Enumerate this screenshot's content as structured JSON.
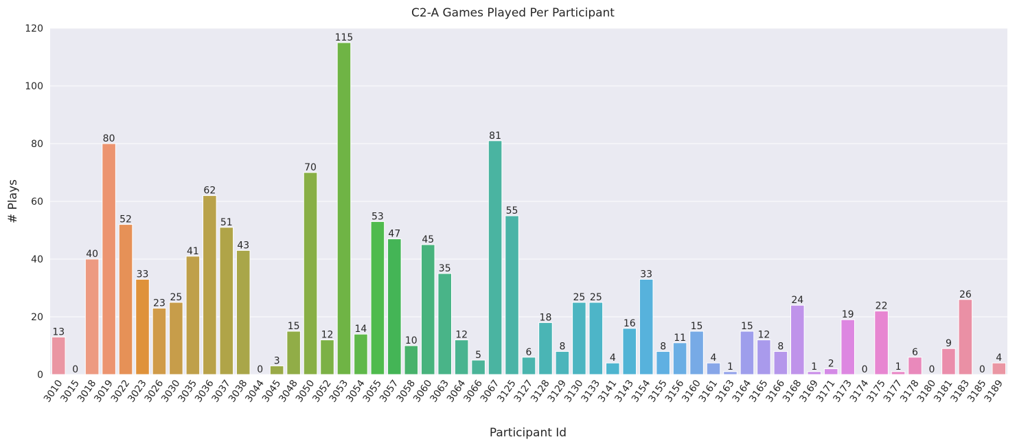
{
  "chart_data": {
    "type": "bar",
    "title": "C2-A Games Played Per Participant",
    "xlabel": "Participant Id",
    "ylabel": "# Plays",
    "ylim": [
      0,
      120
    ],
    "yticks": [
      0,
      20,
      40,
      60,
      80,
      100,
      120
    ],
    "grid": true,
    "legend": "none",
    "categories": [
      "3010",
      "3015",
      "3018",
      "3019",
      "3022",
      "3023",
      "3026",
      "3030",
      "3035",
      "3036",
      "3037",
      "3038",
      "3044",
      "3045",
      "3048",
      "3050",
      "3052",
      "3053",
      "3054",
      "3055",
      "3057",
      "3058",
      "3060",
      "3063",
      "3064",
      "3066",
      "3067",
      "3125",
      "3127",
      "3128",
      "3129",
      "3130",
      "3133",
      "3141",
      "3143",
      "3154",
      "3155",
      "3156",
      "3160",
      "3161",
      "3163",
      "3164",
      "3165",
      "3166",
      "3168",
      "3169",
      "3171",
      "3173",
      "3174",
      "3175",
      "3177",
      "3178",
      "3180",
      "3181",
      "3183",
      "3185",
      "3189"
    ],
    "values": [
      13,
      0,
      40,
      80,
      52,
      33,
      23,
      25,
      41,
      62,
      51,
      43,
      0,
      3,
      15,
      70,
      12,
      115,
      14,
      53,
      47,
      10,
      45,
      35,
      12,
      5,
      81,
      55,
      6,
      18,
      8,
      25,
      25,
      4,
      16,
      33,
      8,
      11,
      15,
      4,
      1,
      15,
      12,
      8,
      24,
      1,
      2,
      19,
      0,
      22,
      1,
      6,
      0,
      9,
      26,
      0,
      4
    ],
    "colors": [
      "#ea96a3",
      "#ea96a3",
      "#ed9a81",
      "#ec9470",
      "#e69157",
      "#df923a",
      "#d09b49",
      "#c79d4a",
      "#bfa04a",
      "#b9a24a",
      "#b0a448",
      "#a9a649",
      "#a1a849",
      "#9aaa48",
      "#91ad47",
      "#88af45",
      "#7cb146",
      "#6fb445",
      "#5fb84a",
      "#4fbb4d",
      "#44b556",
      "#48b26c",
      "#48b37d",
      "#49b488",
      "#49b490",
      "#4ab498",
      "#4ab4a1",
      "#4ab4a7",
      "#4ab5ae",
      "#4ab5b5",
      "#4bb5bb",
      "#4cb5c1",
      "#4db5c8",
      "#4eb5cf",
      "#51b4d5",
      "#57b2dc",
      "#60b0e2",
      "#6aaee4",
      "#77aae6",
      "#87a6e8",
      "#93a2ea",
      "#9e9eec",
      "#a99aec",
      "#b597eb",
      "#bf93ea",
      "#c98ee8",
      "#d48ae6",
      "#dd87e1",
      "#e486db",
      "#e786d1",
      "#e887c6",
      "#e989bb",
      "#ea8bb2",
      "#ea8dab",
      "#ea90a5",
      "#ea93a1",
      "#ea96a3"
    ]
  }
}
